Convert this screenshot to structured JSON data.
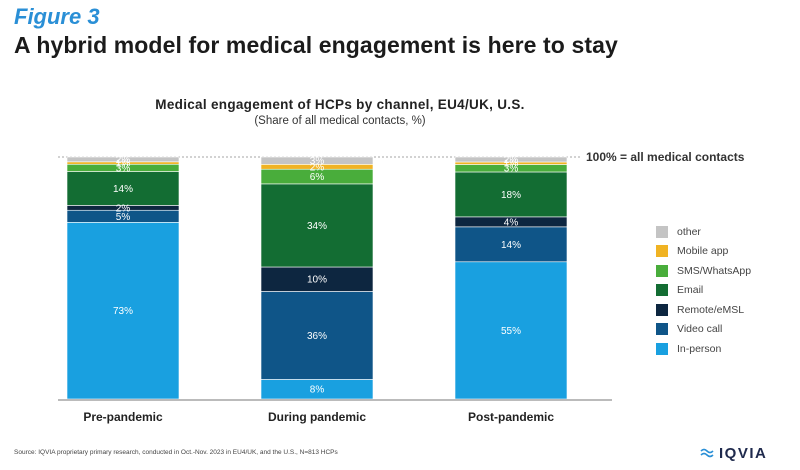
{
  "header": {
    "figure_label": "Figure 3",
    "headline": "A hybrid model for medical engagement is here to stay"
  },
  "chart_data": {
    "type": "bar",
    "stacked": true,
    "title": "Medical engagement of HCPs by channel, EU4/UK, U.S.",
    "subtitle": "(Share of all medical contacts, %)",
    "categories": [
      "Pre-pandemic",
      "During pandemic",
      "Post-pandemic"
    ],
    "series": [
      {
        "name": "In-person",
        "values": [
          73,
          8,
          55
        ],
        "color": "#19a0e0"
      },
      {
        "name": "Video call",
        "values": [
          5,
          36,
          14
        ],
        "color": "#0f5588"
      },
      {
        "name": "Remote/eMSL",
        "values": [
          2,
          10,
          4
        ],
        "color": "#0d2640"
      },
      {
        "name": "Email",
        "values": [
          14,
          34,
          18
        ],
        "color": "#136d33"
      },
      {
        "name": "SMS/WhatsApp",
        "values": [
          3,
          6,
          3
        ],
        "color": "#49ad3b"
      },
      {
        "name": "Mobile app",
        "values": [
          1,
          2,
          1
        ],
        "color": "#f0b323"
      },
      {
        "name": "other",
        "values": [
          2,
          3,
          2
        ],
        "color": "#c4c4c4"
      }
    ],
    "ylim": [
      0,
      100
    ],
    "reference_line": {
      "value": 100,
      "label": "100% = all medical contacts"
    },
    "legend_position": "right"
  },
  "footer": {
    "source": "Source: IQVIA proprietary primary research, conducted in Oct.-Nov. 2023 in EU4/UK, and the U.S., N=813 HCPs",
    "logo_text": "IQVIA"
  }
}
